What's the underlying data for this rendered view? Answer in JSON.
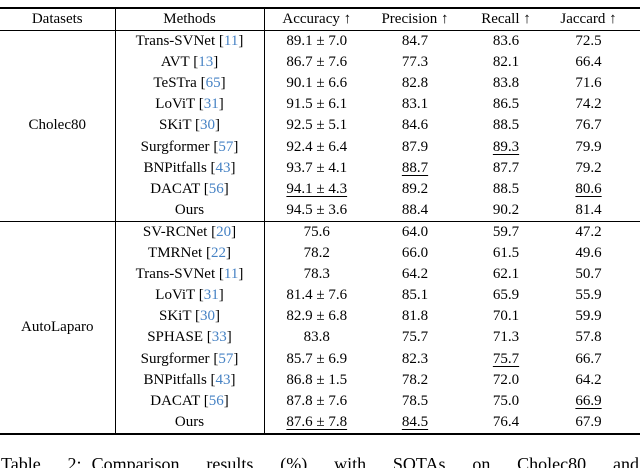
{
  "colors": {
    "citation": "#4682c4",
    "text": "#000000",
    "background": "#ffffff"
  },
  "caption": {
    "label": "Table 2:",
    "text": "Comparison results (%) with SOTAs on Cholec80 and"
  },
  "table": {
    "headers": [
      "Datasets",
      "Methods",
      "Accuracy ↑",
      "Precision ↑",
      "Recall ↑",
      "Jaccard ↑"
    ],
    "sections": [
      {
        "dataset": "Cholec80",
        "rows": [
          {
            "m": "Trans-SVNet",
            "r": "11",
            "c": [
              [
                "89.1 ± 7.0",
                ""
              ],
              [
                "84.7",
                ""
              ],
              [
                "83.6",
                ""
              ],
              [
                "72.5",
                ""
              ]
            ]
          },
          {
            "m": "AVT",
            "r": "13",
            "c": [
              [
                "86.7 ± 7.6",
                ""
              ],
              [
                "77.3",
                ""
              ],
              [
                "82.1",
                ""
              ],
              [
                "66.4",
                ""
              ]
            ]
          },
          {
            "m": "TeSTra",
            "r": "65",
            "c": [
              [
                "90.1 ± 6.6",
                ""
              ],
              [
                "82.8",
                ""
              ],
              [
                "83.8",
                ""
              ],
              [
                "71.6",
                ""
              ]
            ]
          },
          {
            "m": "LoViT",
            "r": "31",
            "c": [
              [
                "91.5 ± 6.1",
                ""
              ],
              [
                "83.1",
                ""
              ],
              [
                "86.5",
                ""
              ],
              [
                "74.2",
                ""
              ]
            ]
          },
          {
            "m": "SKiT",
            "r": "30",
            "c": [
              [
                "92.5 ± 5.1",
                ""
              ],
              [
                "84.6",
                ""
              ],
              [
                "88.5",
                ""
              ],
              [
                "76.7",
                ""
              ]
            ]
          },
          {
            "m": "Surgformer",
            "r": "57",
            "c": [
              [
                "92.4 ± 6.4",
                ""
              ],
              [
                "87.9",
                ""
              ],
              [
                "89.3",
                "u"
              ],
              [
                "79.9",
                ""
              ]
            ]
          },
          {
            "m": "BNPitfalls",
            "r": "43",
            "c": [
              [
                "93.7 ± 4.1",
                ""
              ],
              [
                "88.7",
                "u"
              ],
              [
                "87.7",
                ""
              ],
              [
                "79.2",
                ""
              ]
            ]
          },
          {
            "m": "DACAT",
            "r": "56",
            "c": [
              [
                "94.1 ± 4.3",
                "u"
              ],
              [
                "89.2",
                "b"
              ],
              [
                "88.5",
                ""
              ],
              [
                "80.6",
                "u"
              ]
            ]
          },
          {
            "m": "Ours",
            "r": "",
            "c": [
              [
                "94.5 ± 3.6",
                "b"
              ],
              [
                "88.4",
                ""
              ],
              [
                "90.2",
                "b"
              ],
              [
                "81.4",
                "b"
              ]
            ]
          }
        ]
      },
      {
        "dataset": "AutoLaparo",
        "rows": [
          {
            "m": "SV-RCNet",
            "r": "20",
            "c": [
              [
                "75.6",
                ""
              ],
              [
                "64.0",
                ""
              ],
              [
                "59.7",
                ""
              ],
              [
                "47.2",
                ""
              ]
            ]
          },
          {
            "m": "TMRNet",
            "r": "22",
            "c": [
              [
                "78.2",
                ""
              ],
              [
                "66.0",
                ""
              ],
              [
                "61.5",
                ""
              ],
              [
                "49.6",
                ""
              ]
            ]
          },
          {
            "m": "Trans-SVNet",
            "r": "11",
            "c": [
              [
                "78.3",
                ""
              ],
              [
                "64.2",
                ""
              ],
              [
                "62.1",
                ""
              ],
              [
                "50.7",
                ""
              ]
            ]
          },
          {
            "m": "LoViT",
            "r": "31",
            "c": [
              [
                "81.4 ± 7.6",
                ""
              ],
              [
                "85.1",
                "b"
              ],
              [
                "65.9",
                ""
              ],
              [
                "55.9",
                ""
              ]
            ]
          },
          {
            "m": "SKiT",
            "r": "30",
            "c": [
              [
                "82.9 ± 6.8",
                ""
              ],
              [
                "81.8",
                ""
              ],
              [
                "70.1",
                ""
              ],
              [
                "59.9",
                ""
              ]
            ]
          },
          {
            "m": "SPHASE",
            "r": "33",
            "c": [
              [
                "83.8",
                ""
              ],
              [
                "75.7",
                ""
              ],
              [
                "71.3",
                ""
              ],
              [
                "57.8",
                ""
              ]
            ]
          },
          {
            "m": "Surgformer",
            "r": "57",
            "c": [
              [
                "85.7 ± 6.9",
                ""
              ],
              [
                "82.3",
                ""
              ],
              [
                "75.7",
                "u"
              ],
              [
                "66.7",
                ""
              ]
            ]
          },
          {
            "m": "BNPitfalls",
            "r": "43",
            "c": [
              [
                "86.8 ± 1.5",
                ""
              ],
              [
                "78.2",
                ""
              ],
              [
                "72.0",
                ""
              ],
              [
                "64.2",
                ""
              ]
            ]
          },
          {
            "m": "DACAT",
            "r": "56",
            "c": [
              [
                "87.8 ± 7.6",
                "b"
              ],
              [
                "78.5",
                ""
              ],
              [
                "75.0",
                ""
              ],
              [
                "66.9",
                "u"
              ]
            ]
          },
          {
            "m": "Ours",
            "r": "",
            "c": [
              [
                "87.6 ± 7.8",
                "u"
              ],
              [
                "84.5",
                "u"
              ],
              [
                "76.4",
                "b"
              ],
              [
                "67.9",
                "b"
              ]
            ]
          }
        ]
      }
    ]
  }
}
